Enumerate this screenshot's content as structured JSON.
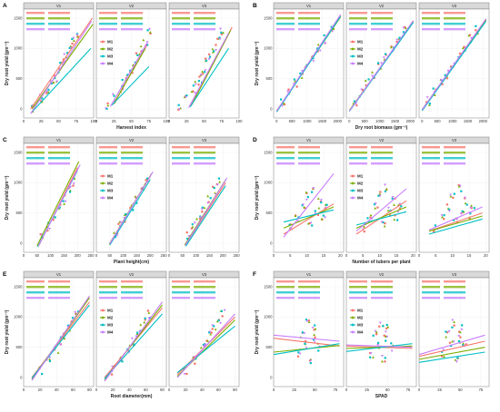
{
  "figure": {
    "series_colors": {
      "M1": "#f8766d",
      "M2": "#7cae00",
      "M3": "#00bfc4",
      "M4": "#c77cff"
    },
    "legend_labels": [
      "M1",
      "M2",
      "M3",
      "M4"
    ],
    "facet_labels": [
      "V1",
      "V2",
      "V3"
    ]
  },
  "chart_data": [
    {
      "panel": "A",
      "type": "scatter",
      "facets": [
        "V1",
        "V2",
        "V3"
      ],
      "xlabel": "Harvest index",
      "ylabel": "Dry root yield (gm⁻²)",
      "xlim": [
        0,
        100
      ],
      "ylim": [
        -150,
        1650
      ],
      "xticks": [
        0,
        25,
        50,
        75,
        100
      ],
      "yticks": [
        0,
        500,
        1000,
        1500
      ],
      "legend": [
        "M1",
        "M2",
        "M3",
        "M4"
      ],
      "series": [
        {
          "name": "M1",
          "fits": [
            [
              10,
              0,
              98,
              1500
            ],
            [
              25,
              80,
              72,
              1050
            ],
            [
              30,
              50,
              90,
              1350
            ]
          ]
        },
        {
          "name": "M2",
          "fits": [
            [
              12,
              0,
              99,
              1400
            ],
            [
              25,
              90,
              70,
              1000
            ],
            [
              32,
              60,
              88,
              1300
            ]
          ]
        },
        {
          "name": "M3",
          "fits": [
            [
              12,
              -50,
              96,
              1000
            ],
            [
              22,
              60,
              75,
              700
            ],
            [
              30,
              30,
              85,
              1000
            ]
          ]
        },
        {
          "name": "M4",
          "fits": [
            [
              10,
              -80,
              97,
              1450
            ],
            [
              20,
              40,
              73,
              1100
            ],
            [
              28,
              20,
              85,
              1250
            ]
          ]
        }
      ],
      "points": [
        {
          "x": 15,
          "y": 20
        },
        {
          "x": 25,
          "y": 180
        },
        {
          "x": 35,
          "y": 320
        },
        {
          "x": 40,
          "y": 420
        },
        {
          "x": 45,
          "y": 500
        },
        {
          "x": 50,
          "y": 620
        },
        {
          "x": 55,
          "y": 760
        },
        {
          "x": 60,
          "y": 880
        },
        {
          "x": 65,
          "y": 1010
        },
        {
          "x": 70,
          "y": 1120
        },
        {
          "x": 75,
          "y": 1260
        }
      ]
    },
    {
      "panel": "B",
      "type": "scatter",
      "facets": [
        "V1",
        "V2",
        "V3"
      ],
      "xlabel": "Dry root biomass (gm⁻²)",
      "ylabel": "Dry root yield (gm⁻²)",
      "xlim": [
        -100,
        2200
      ],
      "ylim": [
        -150,
        1650
      ],
      "xticks": [
        0,
        500,
        1000,
        1500,
        2000
      ],
      "yticks": [
        0,
        500,
        1000,
        1500
      ],
      "legend": [
        "M1",
        "M2",
        "M3",
        "M4"
      ],
      "series": [
        {
          "name": "M1",
          "fits": [
            [
              0,
              -40,
              2100,
              1550
            ],
            [
              0,
              -30,
              2100,
              1450
            ],
            [
              0,
              -20,
              2100,
              1480
            ]
          ]
        },
        {
          "name": "M2",
          "fits": [
            [
              0,
              -30,
              2100,
              1520
            ],
            [
              0,
              -25,
              2100,
              1440
            ],
            [
              0,
              -10,
              2100,
              1470
            ]
          ]
        },
        {
          "name": "M3",
          "fits": [
            [
              0,
              -50,
              2100,
              1530
            ],
            [
              0,
              -40,
              2100,
              1430
            ],
            [
              0,
              -30,
              2100,
              1450
            ]
          ]
        },
        {
          "name": "M4",
          "fits": [
            [
              0,
              -35,
              2100,
              1560
            ],
            [
              0,
              -35,
              2100,
              1460
            ],
            [
              0,
              -15,
              2100,
              1490
            ]
          ]
        }
      ],
      "points": [
        {
          "x": 200,
          "y": 120
        },
        {
          "x": 400,
          "y": 270
        },
        {
          "x": 600,
          "y": 420
        },
        {
          "x": 800,
          "y": 570
        },
        {
          "x": 1000,
          "y": 720
        },
        {
          "x": 1200,
          "y": 860
        },
        {
          "x": 1400,
          "y": 1010
        },
        {
          "x": 1600,
          "y": 1150
        },
        {
          "x": 1800,
          "y": 1310
        }
      ]
    },
    {
      "panel": "C",
      "type": "scatter",
      "facets": [
        "V1",
        "V2",
        "V3"
      ],
      "xlabel": "Plant height(cm)",
      "ylabel": "Dry root yield (gm⁻²)",
      "xlim": [
        0,
        260
      ],
      "ylim": [
        -150,
        1650
      ],
      "xticks": [
        0,
        50,
        100,
        150,
        200,
        250
      ],
      "yticks": [
        0,
        500,
        1000,
        1500
      ],
      "legend": [
        "M1",
        "M2",
        "M3",
        "M4"
      ],
      "series": [
        {
          "name": "M1",
          "fits": [
            [
              55,
              -50,
              200,
              1250
            ],
            [
              50,
              0,
              200,
              1100
            ],
            [
              60,
              -40,
              210,
              1000
            ]
          ]
        },
        {
          "name": "M2",
          "fits": [
            [
              50,
              -40,
              205,
              1350
            ],
            [
              48,
              -20,
              205,
              1150
            ],
            [
              58,
              -30,
              210,
              1050
            ]
          ]
        },
        {
          "name": "M3",
          "fits": [
            [
              52,
              -60,
              200,
              1200
            ],
            [
              50,
              -30,
              200,
              1050
            ],
            [
              62,
              -50,
              210,
              950
            ]
          ]
        },
        {
          "name": "M4",
          "fits": [
            [
              55,
              -45,
              210,
              1300
            ],
            [
              50,
              -10,
              210,
              1180
            ],
            [
              60,
              -35,
              215,
              1080
            ]
          ]
        }
      ],
      "points": [
        {
          "x": 70,
          "y": 120
        },
        {
          "x": 90,
          "y": 280
        },
        {
          "x": 110,
          "y": 420
        },
        {
          "x": 130,
          "y": 580
        },
        {
          "x": 150,
          "y": 720
        },
        {
          "x": 170,
          "y": 880
        },
        {
          "x": 185,
          "y": 1000
        }
      ]
    },
    {
      "panel": "D",
      "type": "scatter",
      "facets": [
        "V1",
        "V2",
        "V3"
      ],
      "xlabel": "Number of tubers per plant",
      "ylabel": "Dry root yield (gm⁻²)",
      "xlim": [
        0,
        21
      ],
      "ylim": [
        -150,
        1650
      ],
      "xticks": [
        0,
        5,
        10,
        15,
        20
      ],
      "yticks": [
        0,
        500,
        1000,
        1500
      ],
      "legend": [
        "M1",
        "M2",
        "M3",
        "M4"
      ],
      "series": [
        {
          "name": "M1",
          "fits": [
            [
              3,
              150,
              18,
              650
            ],
            [
              3,
              150,
              18,
              700
            ],
            [
              3,
              200,
              19,
              500
            ]
          ]
        },
        {
          "name": "M2",
          "fits": [
            [
              3,
              250,
              18,
              600
            ],
            [
              3,
              250,
              18,
              600
            ],
            [
              3,
              200,
              19,
              450
            ]
          ]
        },
        {
          "name": "M3",
          "fits": [
            [
              3,
              350,
              18,
              550
            ],
            [
              3,
              300,
              18,
              520
            ],
            [
              3,
              150,
              19,
              400
            ]
          ]
        },
        {
          "name": "M4",
          "fits": [
            [
              3,
              100,
              18,
              1150
            ],
            [
              3,
              200,
              18,
              900
            ],
            [
              3,
              220,
              19,
              600
            ]
          ]
        }
      ],
      "points": [
        {
          "x": 5,
          "y": 250
        },
        {
          "x": 7,
          "y": 420
        },
        {
          "x": 9,
          "y": 600
        },
        {
          "x": 10,
          "y": 780
        },
        {
          "x": 11,
          "y": 350
        },
        {
          "x": 12,
          "y": 900
        },
        {
          "x": 13,
          "y": 520
        },
        {
          "x": 14,
          "y": 700
        },
        {
          "x": 15,
          "y": 450
        },
        {
          "x": 16,
          "y": 620
        }
      ]
    },
    {
      "panel": "E",
      "type": "scatter",
      "facets": [
        "V1",
        "V2",
        "V3"
      ],
      "xlabel": "Root diameter(mm)",
      "ylabel": "Dry root yield (gm⁻²)",
      "xlim": [
        0,
        85
      ],
      "ylim": [
        -150,
        1650
      ],
      "xticks": [
        0,
        20,
        40,
        60,
        80
      ],
      "yticks": [
        0,
        500,
        1000,
        1500
      ],
      "legend": [
        "M1",
        "M2",
        "M3",
        "M4"
      ],
      "series": [
        {
          "name": "M1",
          "fits": [
            [
              10,
              0,
              80,
              1250
            ],
            [
              10,
              0,
              80,
              1150
            ],
            [
              10,
              50,
              80,
              1000
            ]
          ]
        },
        {
          "name": "M2",
          "fits": [
            [
              10,
              -30,
              80,
              1320
            ],
            [
              10,
              -40,
              80,
              1200
            ],
            [
              10,
              20,
              80,
              950
            ]
          ]
        },
        {
          "name": "M3",
          "fits": [
            [
              10,
              -10,
              80,
              1200
            ],
            [
              10,
              -20,
              80,
              1050
            ],
            [
              10,
              80,
              80,
              850
            ]
          ]
        },
        {
          "name": "M4",
          "fits": [
            [
              10,
              -50,
              80,
              1350
            ],
            [
              10,
              -60,
              80,
              1250
            ],
            [
              10,
              0,
              80,
              1050
            ]
          ]
        }
      ],
      "points": [
        {
          "x": 20,
          "y": 120
        },
        {
          "x": 30,
          "y": 300
        },
        {
          "x": 40,
          "y": 480
        },
        {
          "x": 45,
          "y": 600
        },
        {
          "x": 50,
          "y": 700
        },
        {
          "x": 55,
          "y": 820
        },
        {
          "x": 60,
          "y": 920
        },
        {
          "x": 65,
          "y": 1050
        }
      ]
    },
    {
      "panel": "F",
      "type": "scatter",
      "facets": [
        "V1",
        "V2",
        "V3"
      ],
      "xlabel": "SPAD",
      "ylabel": "Dry root yield (gm⁻²)",
      "xlim": [
        0,
        85
      ],
      "ylim": [
        -150,
        1650
      ],
      "xticks": [
        0,
        25,
        50,
        75
      ],
      "yticks": [
        0,
        500,
        1000,
        1500
      ],
      "legend": [
        "M1",
        "M2",
        "M3",
        "M4"
      ],
      "series": [
        {
          "name": "M1",
          "fits": [
            [
              0,
              650,
              80,
              520
            ],
            [
              0,
              520,
              80,
              480
            ],
            [
              0,
              350,
              80,
              600
            ]
          ]
        },
        {
          "name": "M2",
          "fits": [
            [
              0,
              420,
              80,
              530
            ],
            [
              0,
              480,
              80,
              520
            ],
            [
              0,
              300,
              80,
              500
            ]
          ]
        },
        {
          "name": "M3",
          "fits": [
            [
              0,
              380,
              80,
              560
            ],
            [
              0,
              430,
              80,
              560
            ],
            [
              0,
              250,
              80,
              420
            ]
          ]
        },
        {
          "name": "M4",
          "fits": [
            [
              0,
              700,
              80,
              600
            ],
            [
              0,
              540,
              80,
              500
            ],
            [
              0,
              380,
              80,
              700
            ]
          ]
        }
      ],
      "points": [
        {
          "x": 30,
          "y": 400
        },
        {
          "x": 35,
          "y": 700
        },
        {
          "x": 40,
          "y": 550
        },
        {
          "x": 42,
          "y": 900
        },
        {
          "x": 45,
          "y": 300
        },
        {
          "x": 48,
          "y": 650
        },
        {
          "x": 50,
          "y": 800
        },
        {
          "x": 55,
          "y": 500
        }
      ]
    }
  ]
}
